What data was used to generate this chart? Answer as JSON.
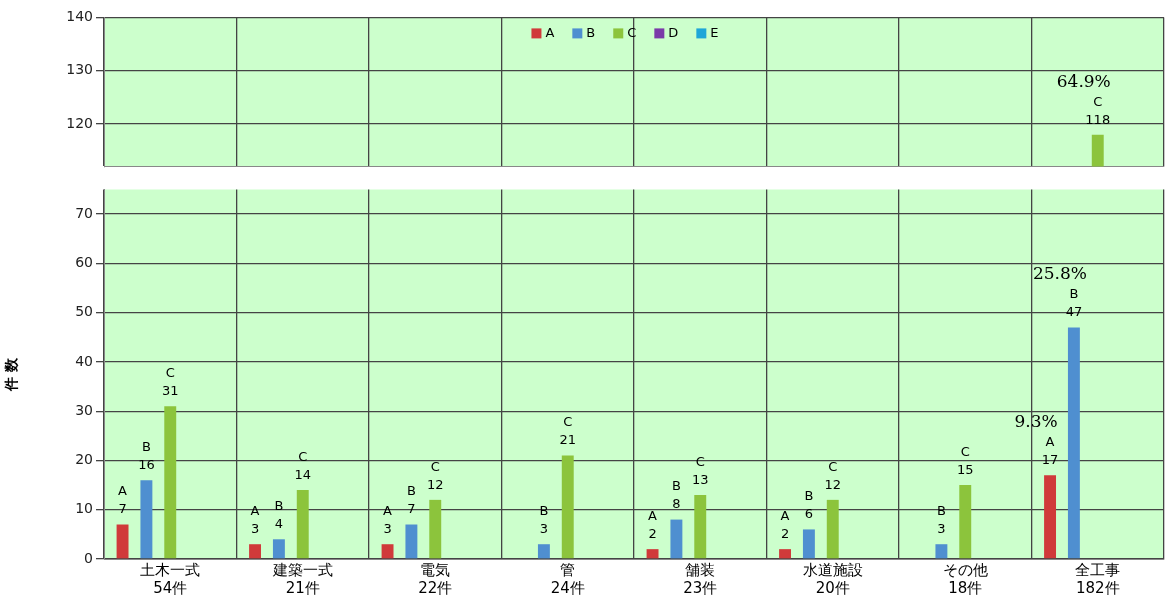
{
  "chart_data": [
    {
      "type": "bar",
      "categories": [
        "土木一式\n54件",
        "建築一式\n21件",
        "電気\n22件",
        "管\n24件",
        "舗装\n23件",
        "水道施設\n20件",
        "その他\n18件",
        "全工事\n182件"
      ],
      "series": [
        {
          "name": "A",
          "color": "#d03a3a",
          "values": [
            null,
            null,
            null,
            null,
            null,
            null,
            null,
            null
          ]
        },
        {
          "name": "B",
          "color": "#4f8fd0",
          "values": [
            null,
            null,
            null,
            null,
            null,
            null,
            null,
            null
          ]
        },
        {
          "name": "C",
          "color": "#8cc43c",
          "values": [
            null,
            null,
            null,
            null,
            null,
            null,
            null,
            118
          ]
        },
        {
          "name": "D",
          "color": "#7a3aa8",
          "values": [
            null,
            null,
            null,
            null,
            null,
            null,
            null,
            null
          ]
        },
        {
          "name": "E",
          "color": "#1ea6d8",
          "values": [
            null,
            null,
            null,
            null,
            null,
            null,
            null,
            null
          ]
        }
      ],
      "ylim": [
        112,
        140
      ],
      "yticks": [
        120,
        130,
        140
      ],
      "tick_labels": "y",
      "grid": true,
      "legend": "top",
      "data_labels": true,
      "annotations": [
        {
          "text": "64.9%",
          "x": "全工事\n182件",
          "y": 118
        }
      ]
    },
    {
      "type": "bar",
      "categories": [
        "土木一式\n54件",
        "建築一式\n21件",
        "電気\n22件",
        "管\n24件",
        "舗装\n23件",
        "水道施設\n20件",
        "その他\n18件",
        "全工事\n182件"
      ],
      "ylabel": "件 数",
      "series": [
        {
          "name": "A",
          "color": "#d03a3a",
          "values": [
            7,
            3,
            3,
            null,
            2,
            2,
            null,
            17
          ]
        },
        {
          "name": "B",
          "color": "#4f8fd0",
          "values": [
            16,
            4,
            7,
            3,
            8,
            6,
            3,
            47
          ]
        },
        {
          "name": "C",
          "color": "#8cc43c",
          "values": [
            31,
            14,
            12,
            21,
            13,
            12,
            15,
            null
          ]
        },
        {
          "color": "#7a3aa8",
          "values": [
            null,
            null,
            null,
            null,
            null,
            null,
            null,
            null
          ]
        },
        {
          "color": "#1ea6d8",
          "values": [
            null,
            null,
            null,
            null,
            null,
            null,
            null,
            null
          ]
        }
      ],
      "ylim": [
        0,
        75
      ],
      "yticks": [
        0,
        10,
        20,
        30,
        40,
        50,
        60,
        70
      ],
      "grid": true,
      "data_labels": true,
      "annotations": [
        "9.3%",
        "25.8%"
      ]
    }
  ]
}
